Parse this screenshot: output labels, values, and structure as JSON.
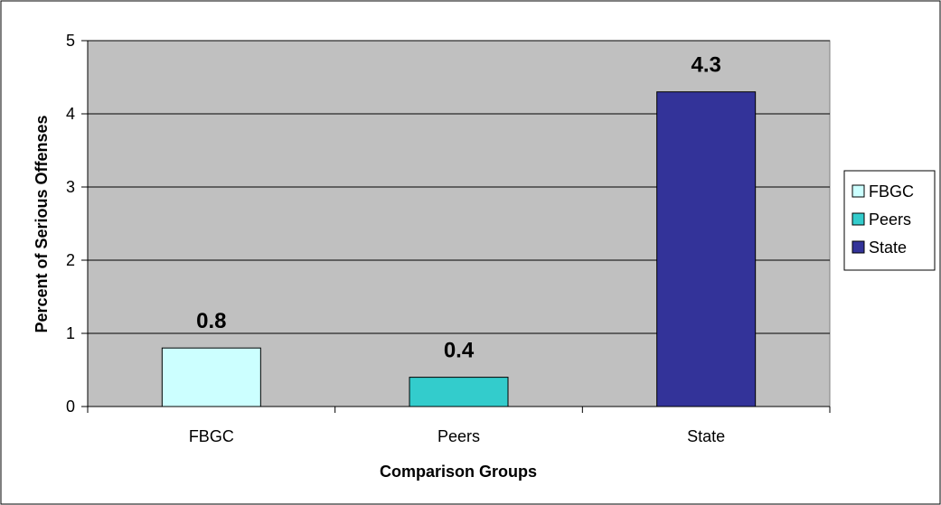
{
  "chart_data": {
    "type": "bar",
    "categories": [
      "FBGC",
      "Peers",
      "State"
    ],
    "values": [
      0.8,
      0.4,
      4.3
    ],
    "data_labels": [
      "0.8",
      "0.4",
      "4.3"
    ],
    "colors": [
      "#ccffff",
      "#33cccc",
      "#333399"
    ],
    "title": "",
    "xlabel": "Comparison Groups",
    "ylabel": "Percent of Serious Offenses",
    "ylim": [
      0,
      5
    ],
    "yticks": [
      0,
      1,
      2,
      3,
      4,
      5
    ],
    "ytick_labels": [
      "0",
      "1",
      "2",
      "3",
      "4",
      "5"
    ],
    "grid": true,
    "plot_background": "#c0c0c0",
    "legend": {
      "position": "right",
      "entries": [
        "FBGC",
        "Peers",
        "State"
      ]
    }
  }
}
